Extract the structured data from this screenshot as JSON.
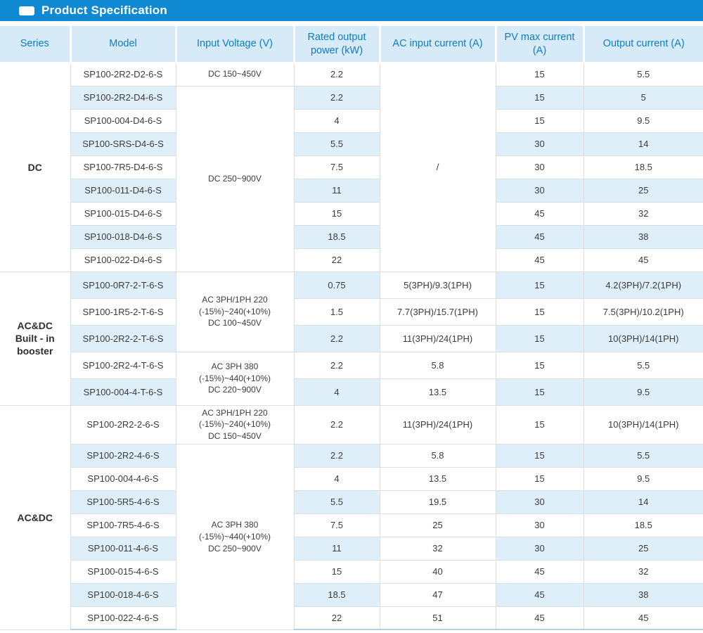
{
  "title": {
    "text": "Product Specification"
  },
  "colors": {
    "accent_blue": "#0f8ad2",
    "header_bg": "#d7eaf8",
    "header_text": "#0d7ec6",
    "row_shade": "#dfeffa",
    "cell_border": "#dadfe3",
    "table_bottom_line": "#b9cfdb",
    "body_text": "#3c3c3c"
  },
  "table": {
    "headers": [
      "Series",
      "Model",
      "Input Voltage (V)",
      "Rated output power (kW)",
      "AC input current (A)",
      "PV max current (A)",
      "Output current (A)"
    ],
    "sections": [
      {
        "series_lines": [
          "DC"
        ],
        "rows": [
          {
            "shaded": false,
            "model": "SP100-2R2-D2-6-S",
            "voltage_lines": [
              "DC 150~450V"
            ],
            "voltage_span": 1,
            "power": "2.2",
            "ac_lines": [
              "/"
            ],
            "ac_span": 9,
            "pv": "15",
            "out": "5.5"
          },
          {
            "shaded": true,
            "model": "SP100-2R2-D4-6-S",
            "voltage_lines": [
              "DC 250~900V"
            ],
            "voltage_span": 8,
            "power": "2.2",
            "pv": "15",
            "out": "5"
          },
          {
            "shaded": false,
            "model": "SP100-004-D4-6-S",
            "power": "4",
            "pv": "15",
            "out": "9.5"
          },
          {
            "shaded": true,
            "model": "SP100-SRS-D4-6-S",
            "power": "5.5",
            "pv": "30",
            "out": "14"
          },
          {
            "shaded": false,
            "model": "SP100-7R5-D4-6-S",
            "power": "7.5",
            "pv": "30",
            "out": "18.5"
          },
          {
            "shaded": true,
            "model": "SP100-011-D4-6-S",
            "power": "11",
            "pv": "30",
            "out": "25"
          },
          {
            "shaded": false,
            "model": "SP100-015-D4-6-S",
            "power": "15",
            "pv": "45",
            "out": "32"
          },
          {
            "shaded": true,
            "model": "SP100-018-D4-6-S",
            "power": "18.5",
            "pv": "45",
            "out": "38"
          },
          {
            "shaded": false,
            "model": "SP100-022-D4-6-S",
            "power": "22",
            "pv": "45",
            "out": "45"
          }
        ]
      },
      {
        "series_lines": [
          "AC&DC",
          "Built - in",
          "booster"
        ],
        "rows": [
          {
            "shaded": true,
            "model": "SP100-0R7-2-T-6-S",
            "voltage_lines": [
              "AC 3PH/1PH 220",
              "(-15%)~240(+10%)",
              "DC 100~450V"
            ],
            "voltage_span": 3,
            "power": "0.75",
            "ac": "5(3PH)/9.3(1PH)",
            "pv": "15",
            "out": "4.2(3PH)/7.2(1PH)"
          },
          {
            "shaded": false,
            "model": "SP100-1R5-2-T-6-S",
            "power": "1.5",
            "ac": "7.7(3PH)/15.7(1PH)",
            "pv": "15",
            "out": "7.5(3PH)/10.2(1PH)"
          },
          {
            "shaded": true,
            "model": "SP100-2R2-2-T-6-S",
            "power": "2.2",
            "ac": "11(3PH)/24(1PH)",
            "pv": "15",
            "out": "10(3PH)/14(1PH)"
          },
          {
            "shaded": false,
            "model": "SP100-2R2-4-T-6-S",
            "voltage_lines": [
              "AC 3PH 380",
              "(-15%)~440(+10%)",
              "DC 220~900V"
            ],
            "voltage_span": 2,
            "power": "2.2",
            "ac": "5.8",
            "pv": "15",
            "out": "5.5"
          },
          {
            "shaded": true,
            "model": "SP100-004-4-T-6-S",
            "power": "4",
            "ac": "13.5",
            "pv": "15",
            "out": "9.5"
          }
        ]
      },
      {
        "series_lines": [
          "AC&DC"
        ],
        "rows": [
          {
            "shaded": false,
            "model": "SP100-2R2-2-6-S",
            "voltage_lines": [
              "AC 3PH/1PH 220",
              "(-15%)~240(+10%)",
              "DC 150~450V"
            ],
            "voltage_span": 1,
            "power": "2.2",
            "ac": "11(3PH)/24(1PH)",
            "pv": "15",
            "out": "10(3PH)/14(1PH)"
          },
          {
            "shaded": true,
            "model": "SP100-2R2-4-6-S",
            "voltage_lines": [
              "AC 3PH 380",
              "(-15%)~440(+10%)",
              "DC 250~900V"
            ],
            "voltage_span": 8,
            "power": "2.2",
            "ac": "5.8",
            "pv": "15",
            "out": "5.5"
          },
          {
            "shaded": false,
            "model": "SP100-004-4-6-S",
            "power": "4",
            "ac": "13.5",
            "pv": "15",
            "out": "9.5"
          },
          {
            "shaded": true,
            "model": "SP100-5R5-4-6-S",
            "power": "5.5",
            "ac": "19.5",
            "pv": "30",
            "out": "14"
          },
          {
            "shaded": false,
            "model": "SP100-7R5-4-6-S",
            "power": "7.5",
            "ac": "25",
            "pv": "30",
            "out": "18.5"
          },
          {
            "shaded": true,
            "model": "SP100-011-4-6-S",
            "power": "11",
            "ac": "32",
            "pv": "30",
            "out": "25"
          },
          {
            "shaded": false,
            "model": "SP100-015-4-6-S",
            "power": "15",
            "ac": "40",
            "pv": "45",
            "out": "32"
          },
          {
            "shaded": true,
            "model": "SP100-018-4-6-S",
            "power": "18.5",
            "ac": "47",
            "pv": "45",
            "out": "38"
          },
          {
            "shaded": false,
            "model": "SP100-022-4-6-S",
            "power": "22",
            "ac": "51",
            "pv": "45",
            "out": "45"
          }
        ]
      }
    ]
  }
}
